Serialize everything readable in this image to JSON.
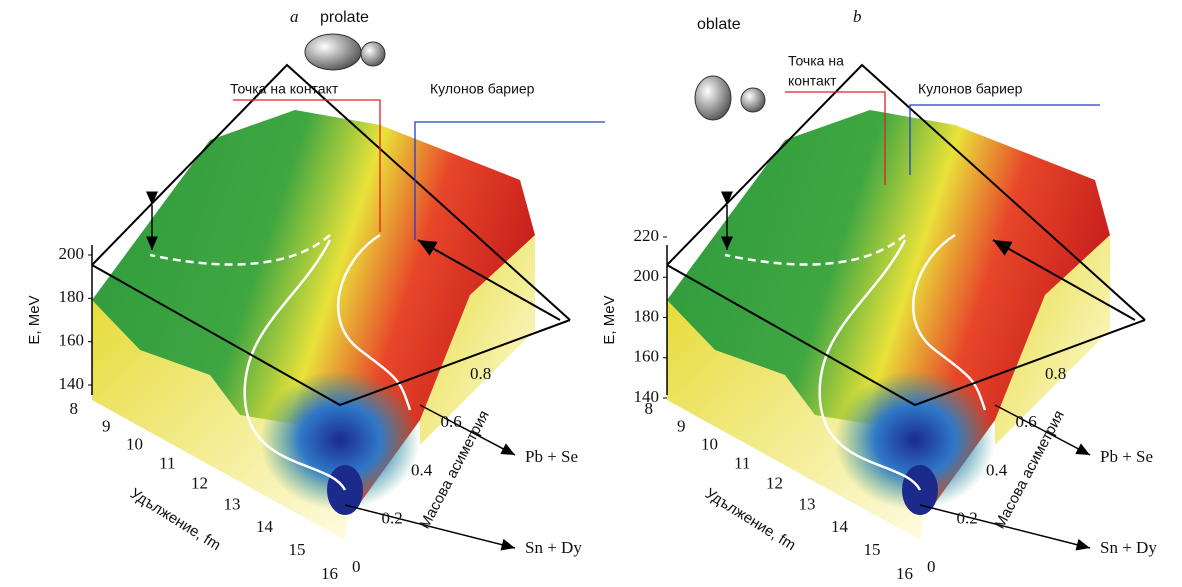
{
  "panels": [
    {
      "label": "a",
      "shape": "prolate",
      "contact_point": [
        "Точка на контакт"
      ],
      "coulomb_barrier": "Кулонов бариер",
      "z_axis": {
        "title": "E, MeV",
        "ticks": [
          140,
          160,
          180,
          200
        ]
      },
      "x_axis": {
        "title": "Удължение, fm",
        "ticks": [
          8,
          9,
          10,
          11,
          12,
          13,
          14,
          15,
          16
        ]
      },
      "mass_axis": {
        "title": "Масова асиметрия",
        "ticks": [
          0,
          0.2,
          0.4,
          0.6,
          0.8
        ]
      },
      "channels": [
        "Pb + Se",
        "Sn + Dy"
      ]
    },
    {
      "label": "b",
      "shape": "oblate",
      "contact_point": [
        "Точка на",
        "контакт"
      ],
      "coulomb_barrier": "Кулонов бариер",
      "z_axis": {
        "title": "E, MeV",
        "ticks": [
          140,
          160,
          180,
          200,
          220
        ]
      },
      "x_axis": {
        "title": "Удължение, fm",
        "ticks": [
          8,
          9,
          10,
          11,
          12,
          13,
          14,
          15,
          16
        ]
      },
      "mass_axis": {
        "title": "Масова асиметрия",
        "ticks": [
          0,
          0.2,
          0.4,
          0.6,
          0.8
        ]
      },
      "channels": [
        "Pb + Se",
        "Sn + Dy"
      ]
    }
  ]
}
